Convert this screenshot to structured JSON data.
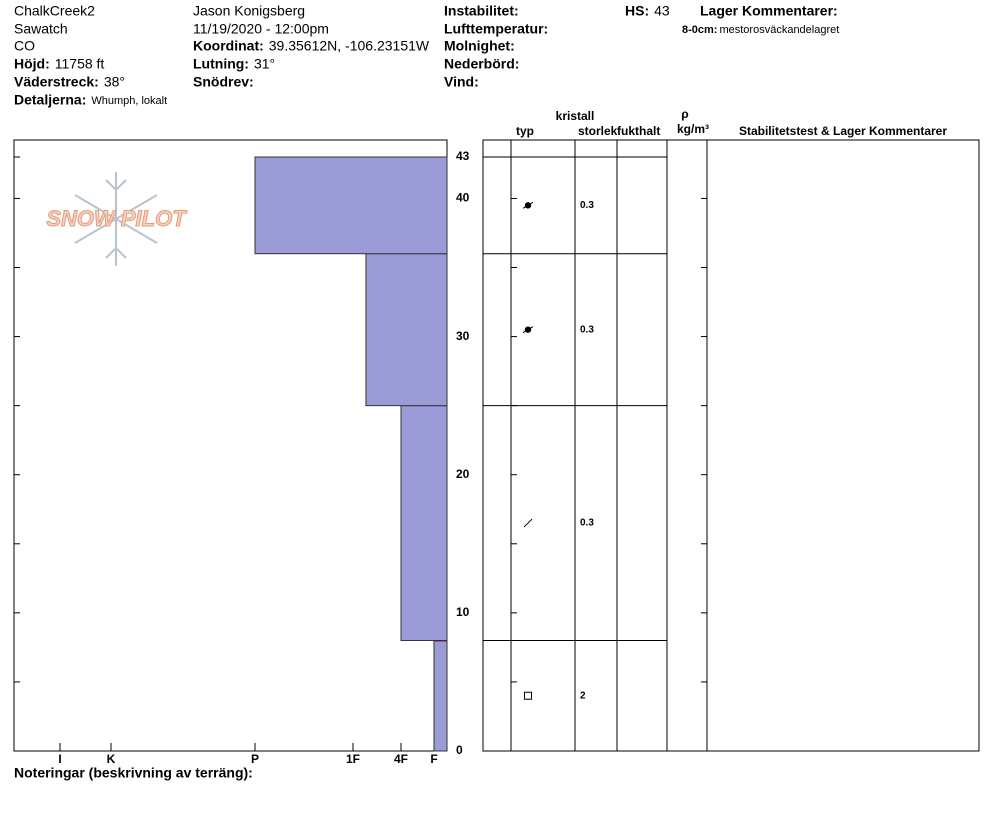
{
  "header": {
    "lines1": [
      "ChalkCreek2",
      "Sawatch",
      "CO"
    ],
    "fields1": [
      {
        "label": "Höjd:",
        "value": "11758 ft"
      },
      {
        "label": "Väderstreck:",
        "value": "38°"
      },
      {
        "label": "Detaljerna:",
        "value": "Whumph, lokalt"
      }
    ],
    "lines2": [
      "Jason Konigsberg",
      "11/19/2020 - 12:00pm"
    ],
    "fields2": [
      {
        "label": "Koordinat:",
        "value": "39.35612N, -106.23151W"
      },
      {
        "label": "Lutning:",
        "value": "31°"
      },
      {
        "label": "Snödrev:"
      }
    ],
    "fields3": [
      {
        "label": "Instabilitet:"
      },
      {
        "label": "Lufttemperatur:"
      },
      {
        "label": "Molnighet:"
      },
      {
        "label": "Nederbörd:"
      },
      {
        "label": "Vind:"
      }
    ],
    "hs": {
      "label": "HS:",
      "value": 43
    },
    "layer_comments": {
      "title": "Lager Kommentarer:",
      "items": [
        {
          "range": "8-0cm:",
          "text": "mestorosväckandelagret"
        }
      ]
    },
    "notes_label": "Noteringar (beskrivning av terräng):"
  },
  "chart_data": {
    "type": "snow-profile",
    "logo": "SNOW PILOT",
    "ylim": [
      0,
      43
    ],
    "yticks": [
      0,
      10,
      20,
      30,
      40,
      43
    ],
    "minor_yticks": [
      5,
      15,
      25,
      35
    ],
    "hardness_categories": [
      "I",
      "K",
      "P",
      "1F",
      "4F",
      "F"
    ],
    "color": "#9b9bd8",
    "marked_color": "#8b1a3a",
    "layers": [
      {
        "bottom": 0,
        "top": 8,
        "hardness": "F",
        "grain": "FC",
        "size": 2,
        "marked": true
      },
      {
        "bottom": 8,
        "top": 25,
        "hardness": "4F",
        "grain": "DF",
        "size": 0.3
      },
      {
        "bottom": 25,
        "top": 36,
        "hardness": "1F-",
        "grain": "RGxf",
        "size": 0.3
      },
      {
        "bottom": 36,
        "top": 43,
        "hardness": "P",
        "grain": "RGxf",
        "size": 0.3
      }
    ],
    "table_headers": {
      "crystal": "kristall",
      "type": "typ",
      "size": "storlek",
      "moisture": "fukthalt",
      "rho": "ρ",
      "density_unit": "kg/m³",
      "comments": "Stabilitetstest & Lager Kommentarer"
    }
  }
}
